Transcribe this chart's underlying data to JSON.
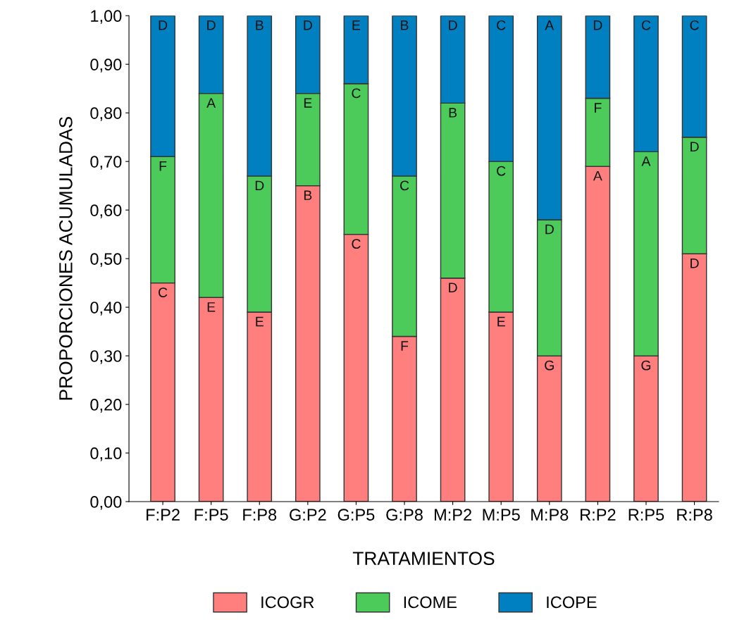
{
  "chart_data": {
    "type": "bar",
    "stacked": true,
    "xlabel": "TRATAMIENTOS",
    "ylabel": "PROPORCIONES ACUMULADAS",
    "categories": [
      "F:P2",
      "F:P5",
      "F:P8",
      "G:P2",
      "G:P5",
      "G:P8",
      "M:P2",
      "M:P5",
      "M:P8",
      "R:P2",
      "R:P5",
      "R:P8"
    ],
    "series": [
      {
        "name": "ICOGR",
        "color": "#ff7f7f",
        "values": [
          0.45,
          0.42,
          0.39,
          0.65,
          0.55,
          0.34,
          0.46,
          0.39,
          0.3,
          0.69,
          0.3,
          0.51
        ],
        "value_labels": [
          "C",
          "E",
          "E",
          "B",
          "C",
          "F",
          "D",
          "E",
          "G",
          "A",
          "G",
          "D"
        ]
      },
      {
        "name": "ICOME",
        "color": "#4ccb5a",
        "values": [
          0.26,
          0.42,
          0.28,
          0.19,
          0.31,
          0.33,
          0.36,
          0.31,
          0.28,
          0.14,
          0.42,
          0.24
        ],
        "value_labels": [
          "F",
          "A",
          "D",
          "E",
          "C",
          "C",
          "B",
          "C",
          "D",
          "F",
          "A",
          "D"
        ]
      },
      {
        "name": "ICOPE",
        "color": "#0080c0",
        "values": [
          0.29,
          0.16,
          0.33,
          0.16,
          0.14,
          0.33,
          0.18,
          0.3,
          0.42,
          0.17,
          0.28,
          0.25
        ],
        "value_labels": [
          "D",
          "D",
          "B",
          "D",
          "E",
          "B",
          "D",
          "C",
          "A",
          "D",
          "C",
          "C"
        ]
      }
    ],
    "ylim": [
      0,
      1
    ],
    "yticks": [
      {
        "value": 0,
        "label": "0,00"
      },
      {
        "value": 0.1,
        "label": "0,10"
      },
      {
        "value": 0.2,
        "label": "0,20"
      },
      {
        "value": 0.3,
        "label": "0,30"
      },
      {
        "value": 0.4,
        "label": "0,40"
      },
      {
        "value": 0.5,
        "label": "0,50"
      },
      {
        "value": 0.6,
        "label": "0,60"
      },
      {
        "value": 0.7,
        "label": "0,70"
      },
      {
        "value": 0.8,
        "label": "0,80"
      },
      {
        "value": 0.9,
        "label": "0,90"
      },
      {
        "value": 1,
        "label": "1,00"
      }
    ],
    "grid": false,
    "legend": "bottom"
  }
}
